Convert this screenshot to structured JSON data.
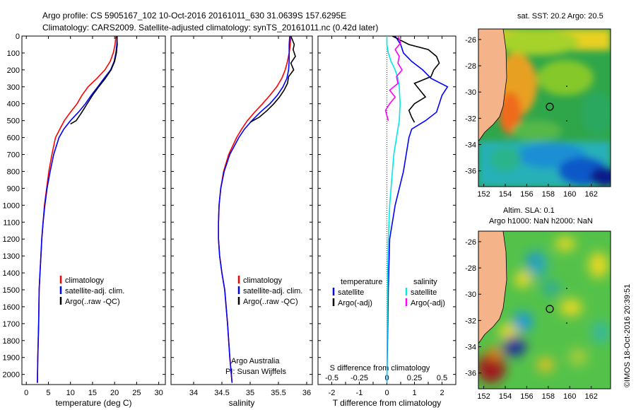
{
  "header": {
    "line1": "Argo profile: CS 5905167_102 10-Oct-2016 20161011_630 31.0639S 157.6295E",
    "line2": "Climatology: CARS2009. Satellite-adjusted climatology: synTS_20161011.nc (0.42d later)"
  },
  "depth_ticks": [
    0,
    100,
    200,
    300,
    400,
    500,
    600,
    700,
    800,
    900,
    1000,
    1100,
    1200,
    1300,
    1400,
    1500,
    1600,
    1700,
    1800,
    1900,
    2000
  ],
  "colors": {
    "climatology": "#ff0000",
    "satellite": "#0000ff",
    "argo": "#000000",
    "salinity_satellite": "#00e8e8",
    "salinity_argo": "#ff00ff",
    "land": "#f5b38a"
  },
  "chart_data": [
    {
      "type": "line",
      "panel": "temperature",
      "xlabel": "temperature (deg C)",
      "xlim": [
        -1,
        31.5
      ],
      "xticks": [
        0,
        5,
        10,
        15,
        20,
        25,
        30
      ],
      "ylim": [
        0,
        2060
      ],
      "y_reversed": true,
      "legend": {
        "position": "bottom-right",
        "entries": [
          "climatology",
          "satellite-adj. clim.",
          "Argo(..raw -QC)"
        ]
      },
      "series": [
        {
          "name": "climatology",
          "color": "#ff0000",
          "x": [
            20.3,
            20.1,
            19.7,
            19.0,
            17.8,
            16.0,
            14.0,
            12.6,
            11.5,
            10.0,
            8.6,
            7.6,
            6.6,
            5.8,
            5.1,
            4.6,
            4.1,
            3.8,
            3.5,
            3.3,
            3.1,
            2.9,
            2.8,
            2.6,
            2.5
          ],
          "y": [
            0,
            50,
            100,
            150,
            200,
            250,
            300,
            350,
            400,
            450,
            500,
            550,
            600,
            700,
            800,
            900,
            1000,
            1100,
            1200,
            1300,
            1400,
            1500,
            1700,
            1900,
            2050
          ]
        },
        {
          "name": "satellite-adj. clim.",
          "color": "#0000ff",
          "x": [
            20.6,
            20.5,
            20.3,
            19.9,
            19.1,
            17.6,
            16.2,
            14.7,
            13.4,
            11.8,
            10.0,
            8.5,
            7.4,
            6.2,
            5.4,
            4.7,
            4.2,
            3.8,
            3.5,
            3.3,
            3.1,
            2.9,
            2.8,
            2.6,
            2.5
          ],
          "y": [
            0,
            50,
            100,
            150,
            200,
            250,
            300,
            350,
            400,
            450,
            500,
            550,
            600,
            700,
            800,
            900,
            1000,
            1100,
            1200,
            1300,
            1400,
            1500,
            1700,
            1900,
            2050
          ]
        },
        {
          "name": "Argo(..raw -QC)",
          "color": "#000000",
          "x": [
            20.5,
            20.6,
            20.4,
            20.0,
            19.2,
            17.9,
            16.4,
            15.0,
            13.8,
            12.6,
            11.3,
            10.0
          ],
          "y": [
            0,
            50,
            100,
            150,
            200,
            250,
            300,
            350,
            400,
            450,
            500,
            520
          ]
        }
      ]
    },
    {
      "type": "line",
      "panel": "salinity",
      "xlabel": "salinity",
      "xlim": [
        33.6,
        36.1
      ],
      "xticks": [
        34,
        34.5,
        35,
        35.5,
        36
      ],
      "xtick_labels": [
        "34",
        "34.5",
        "35",
        "35.5",
        "36"
      ],
      "ylim": [
        0,
        2060
      ],
      "y_reversed": true,
      "legend": {
        "position": "bottom-right",
        "entries": [
          "climatology",
          "satellite-adj. clim.",
          "Argo(..raw -QC)"
        ]
      },
      "annotation": {
        "line1": "Argo Australia",
        "line2": "PI: Susan Wijffels"
      },
      "series": [
        {
          "name": "climatology",
          "color": "#ff0000",
          "x": [
            35.72,
            35.71,
            35.69,
            35.66,
            35.62,
            35.56,
            35.47,
            35.35,
            35.22,
            35.08,
            34.95,
            34.85,
            34.76,
            34.62,
            34.53,
            34.48,
            34.45,
            34.44,
            34.44,
            34.46,
            34.5,
            34.55,
            34.6,
            34.64,
            34.68
          ],
          "y": [
            0,
            50,
            100,
            150,
            200,
            250,
            300,
            350,
            400,
            450,
            500,
            550,
            600,
            700,
            800,
            900,
            1000,
            1100,
            1200,
            1300,
            1400,
            1500,
            1700,
            1900,
            2050
          ]
        },
        {
          "name": "satellite-adj. clim.",
          "color": "#0000ff",
          "x": [
            35.7,
            35.69,
            35.69,
            35.69,
            35.68,
            35.65,
            35.58,
            35.48,
            35.35,
            35.18,
            35.03,
            34.9,
            34.8,
            34.64,
            34.54,
            34.48,
            34.45,
            34.44,
            34.44,
            34.46,
            34.5,
            34.55,
            34.6,
            34.64,
            34.68
          ],
          "y": [
            0,
            50,
            100,
            150,
            200,
            250,
            300,
            350,
            400,
            450,
            500,
            550,
            600,
            700,
            800,
            900,
            1000,
            1100,
            1200,
            1300,
            1400,
            1500,
            1700,
            1900,
            2050
          ]
        },
        {
          "name": "Argo(..raw -QC)",
          "color": "#000000",
          "x": [
            35.72,
            35.78,
            35.76,
            35.8,
            35.72,
            35.77,
            35.68,
            35.66,
            35.6,
            35.52,
            35.42,
            35.3,
            35.16,
            35.05,
            35.0
          ],
          "y": [
            0,
            50,
            80,
            120,
            160,
            200,
            240,
            280,
            320,
            360,
            400,
            440,
            480,
            500,
            510
          ]
        }
      ]
    },
    {
      "type": "line",
      "panel": "difference",
      "xlabel": "T difference from climatology",
      "xlim": [
        -2.5,
        2.5
      ],
      "xticks": [
        -2,
        -1.5,
        -1,
        -0.5,
        0,
        0.5,
        1,
        1.5,
        2
      ],
      "xtick_labels": [
        "-2",
        "",
        "-1",
        "",
        "0",
        "",
        "1",
        "",
        "2"
      ],
      "top_xlabel": "S difference from climatology",
      "top_xticks": [
        -2.0,
        -1.0,
        0,
        1.0,
        2.0
      ],
      "top_xtick_labels": [
        "-0.5",
        "-0.25",
        "0",
        "0.25",
        "0.5"
      ],
      "ylim": [
        0,
        2060
      ],
      "y_reversed": true,
      "zero_line": true,
      "legend": {
        "position": "bottom",
        "groups": [
          {
            "heading": "temperature",
            "entries": [
              "satellite",
              "Argo(-adj)"
            ]
          },
          {
            "heading": "salinity",
            "entries": [
              "satellite",
              "Argo(-adj)"
            ]
          }
        ]
      },
      "series": [
        {
          "name": "temperature satellite",
          "color": "#0000ff",
          "x": [
            0.3,
            0.5,
            0.6,
            0.9,
            1.3,
            1.6,
            2.2,
            2.0,
            1.9,
            1.8,
            1.4,
            0.9,
            0.8,
            0.6,
            0.3,
            0.1,
            0.05,
            0
          ],
          "y": [
            0,
            50,
            100,
            150,
            200,
            250,
            300,
            350,
            400,
            450,
            500,
            550,
            600,
            800,
            1000,
            1200,
            1500,
            2050
          ]
        },
        {
          "name": "temperature Argo(-adj)",
          "color": "#000000",
          "x": [
            0.2,
            0.8,
            1.5,
            1.8,
            1.9,
            1.7,
            1.6,
            1.0,
            1.2,
            1.4,
            1.0,
            0.8,
            0.9,
            1.0
          ],
          "y": [
            0,
            50,
            80,
            120,
            160,
            200,
            240,
            280,
            320,
            360,
            400,
            440,
            480,
            510
          ]
        },
        {
          "name": "salinity satellite",
          "color": "#00e8e8",
          "x": [
            0,
            0,
            0.05,
            0.15,
            0.3,
            0.4,
            0.45,
            0.48,
            0.45,
            0.35,
            0.25,
            0.2,
            0.1,
            0.05,
            0.02,
            0
          ],
          "y": [
            0,
            50,
            100,
            150,
            200,
            250,
            300,
            400,
            500,
            600,
            700,
            800,
            1000,
            1200,
            1500,
            2050
          ]
        },
        {
          "name": "salinity Argo(-adj)",
          "color": "#ff00ff",
          "x": [
            0.4,
            0.5,
            0.3,
            0.45,
            0.4,
            0.55,
            0.35,
            0.4,
            0.1,
            0.3,
            0.1,
            -0.05,
            0.05
          ],
          "y": [
            0,
            40,
            80,
            120,
            160,
            200,
            240,
            280,
            320,
            360,
            400,
            440,
            500
          ]
        }
      ]
    }
  ],
  "maps": {
    "sst": {
      "title": "sat. SST: 20.2  Argo: 20.5",
      "xticks": [
        152,
        154,
        156,
        158,
        160,
        162
      ],
      "yticks": [
        -26,
        -28,
        -30,
        -32,
        -34,
        -36
      ],
      "xlim": [
        151.5,
        163.8
      ],
      "ylim": [
        -37.2,
        -25.2
      ],
      "float_position": {
        "lon": 157.63,
        "lat": -31.06
      }
    },
    "sla": {
      "title_line1": "Altim. SLA: 0.1",
      "title_line2": "Argo h1000: NaN  h2000: NaN",
      "xticks": [
        152,
        154,
        156,
        158,
        160,
        162
      ],
      "yticks": [
        -26,
        -28,
        -30,
        -32,
        -34,
        -36
      ],
      "xlim": [
        151.5,
        163.8
      ],
      "ylim": [
        -37.2,
        -25.2
      ],
      "float_position": {
        "lon": 157.63,
        "lat": -31.06
      }
    }
  },
  "footer": {
    "credit": "©IMOS 18-Oct-2016 20:39:51"
  }
}
